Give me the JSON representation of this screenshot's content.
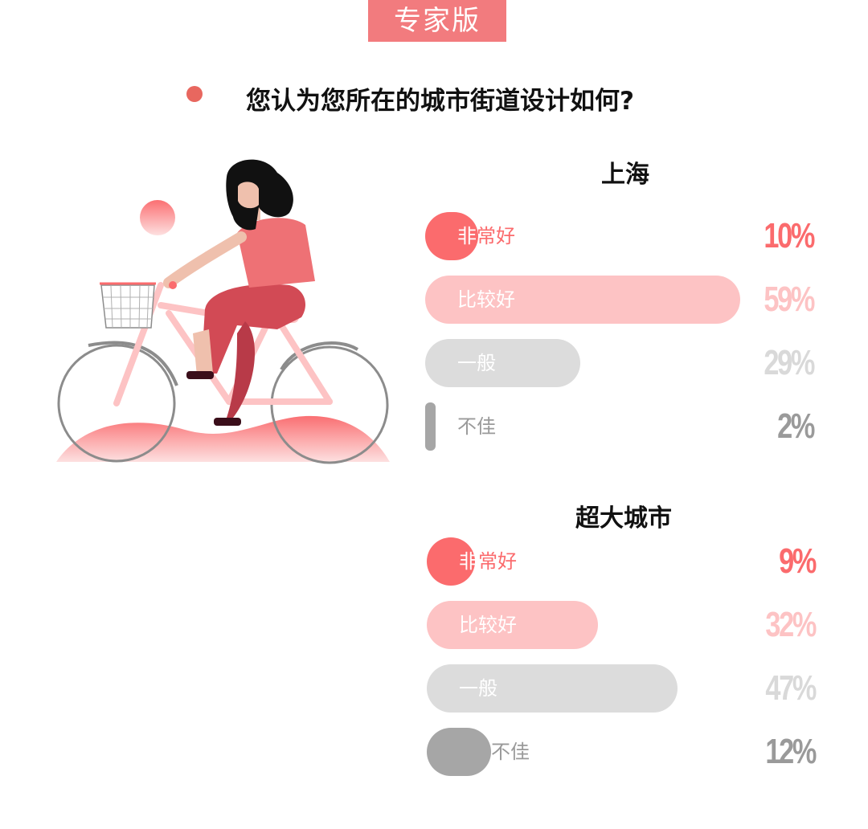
{
  "header": {
    "badge": "专家版",
    "question": "您认为您所在的城市街道设计如何?"
  },
  "colors": {
    "非常好": "#fb6b6d",
    "比较好": "#fdc3c4",
    "一般": "#dcdcdc",
    "不佳": "#a6a6a6",
    "label_on_dark": "#ffffff",
    "label_on_light": "#9a9a9a"
  },
  "chart_data": [
    {
      "type": "bar",
      "title": "上海",
      "categories": [
        "非常好",
        "比较好",
        "一般",
        "不佳"
      ],
      "values": [
        10,
        59,
        29,
        2
      ],
      "value_labels": [
        "10%",
        "59%",
        "29%",
        "2%"
      ],
      "unit": "%",
      "xlim": [
        0,
        59
      ]
    },
    {
      "type": "bar",
      "title": "超大城市",
      "categories": [
        "非常好",
        "比较好",
        "一般",
        "不佳"
      ],
      "values": [
        9,
        32,
        47,
        12
      ],
      "value_labels": [
        "9%",
        "32%",
        "47%",
        "12%"
      ],
      "unit": "%",
      "xlim": [
        0,
        59
      ]
    }
  ]
}
